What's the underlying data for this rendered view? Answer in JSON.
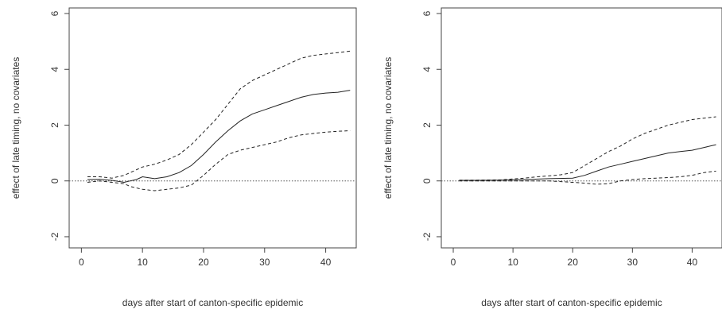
{
  "chart_data": [
    {
      "type": "line",
      "title": "",
      "xlabel": "days after start of canton-specific epidemic",
      "ylabel": "effect of late timing, no covariates",
      "xlim": [
        -2,
        45
      ],
      "ylim": [
        -2.4,
        6.2
      ],
      "xticks": [
        "0",
        "10",
        "20",
        "30",
        "40"
      ],
      "yticks": [
        "-2",
        "0",
        "2",
        "4",
        "6"
      ],
      "reference_line": 0,
      "series": [
        {
          "style": "solid",
          "x": [
            1,
            3,
            5,
            7,
            8,
            9,
            10,
            12,
            14,
            16,
            18,
            20,
            22,
            24,
            26,
            28,
            30,
            32,
            34,
            36,
            38,
            40,
            42,
            44
          ],
          "y": [
            0.05,
            0.06,
            0.02,
            -0.05,
            0.0,
            0.05,
            0.15,
            0.08,
            0.15,
            0.3,
            0.55,
            0.95,
            1.4,
            1.8,
            2.15,
            2.4,
            2.55,
            2.7,
            2.85,
            3.0,
            3.1,
            3.15,
            3.18,
            3.25
          ]
        },
        {
          "style": "dashed",
          "x": [
            1,
            3,
            5,
            7,
            8,
            9,
            10,
            12,
            14,
            16,
            18,
            20,
            22,
            24,
            26,
            28,
            30,
            32,
            34,
            36,
            38,
            40,
            42,
            44
          ],
          "y": [
            0.15,
            0.15,
            0.1,
            0.2,
            0.3,
            0.4,
            0.5,
            0.6,
            0.75,
            0.95,
            1.3,
            1.75,
            2.2,
            2.75,
            3.3,
            3.6,
            3.8,
            4.0,
            4.2,
            4.4,
            4.5,
            4.55,
            4.6,
            4.65
          ]
        },
        {
          "style": "dashed",
          "x": [
            1,
            3,
            5,
            7,
            8,
            9,
            10,
            12,
            14,
            16,
            18,
            20,
            22,
            24,
            26,
            28,
            30,
            32,
            34,
            36,
            38,
            40,
            42,
            44
          ],
          "y": [
            -0.05,
            0.0,
            -0.05,
            -0.1,
            -0.2,
            -0.25,
            -0.3,
            -0.35,
            -0.3,
            -0.25,
            -0.15,
            0.2,
            0.6,
            0.95,
            1.1,
            1.2,
            1.3,
            1.4,
            1.55,
            1.65,
            1.7,
            1.75,
            1.78,
            1.8
          ]
        }
      ]
    },
    {
      "type": "line",
      "title": "",
      "xlabel": "days after start of canton-specific epidemic",
      "ylabel": "effect of late timing, no covariates",
      "xlim": [
        -2,
        45
      ],
      "ylim": [
        -2.4,
        6.2
      ],
      "xticks": [
        "0",
        "10",
        "20",
        "30",
        "40"
      ],
      "yticks": [
        "-2",
        "0",
        "2",
        "4",
        "6"
      ],
      "reference_line": 0,
      "series": [
        {
          "style": "solid",
          "x": [
            1,
            4,
            8,
            12,
            16,
            20,
            22,
            24,
            26,
            28,
            30,
            32,
            34,
            36,
            38,
            40,
            42,
            44
          ],
          "y": [
            0.02,
            0.02,
            0.03,
            0.05,
            0.08,
            0.1,
            0.2,
            0.35,
            0.5,
            0.6,
            0.7,
            0.8,
            0.9,
            1.0,
            1.05,
            1.1,
            1.2,
            1.3
          ]
        },
        {
          "style": "dashed",
          "x": [
            1,
            4,
            8,
            12,
            14,
            16,
            18,
            20,
            22,
            24,
            26,
            28,
            30,
            32,
            34,
            36,
            38,
            40,
            42,
            44
          ],
          "y": [
            0.03,
            0.03,
            0.04,
            0.1,
            0.15,
            0.18,
            0.22,
            0.3,
            0.55,
            0.8,
            1.05,
            1.25,
            1.5,
            1.7,
            1.85,
            2.0,
            2.1,
            2.2,
            2.25,
            2.3
          ]
        },
        {
          "style": "dashed",
          "x": [
            1,
            4,
            8,
            12,
            16,
            20,
            22,
            24,
            26,
            28,
            30,
            32,
            34,
            36,
            38,
            40,
            42,
            44
          ],
          "y": [
            0.0,
            0.0,
            0.0,
            0.0,
            0.0,
            -0.05,
            -0.08,
            -0.12,
            -0.1,
            0.0,
            0.05,
            0.08,
            0.1,
            0.12,
            0.15,
            0.2,
            0.3,
            0.35
          ]
        }
      ]
    }
  ]
}
